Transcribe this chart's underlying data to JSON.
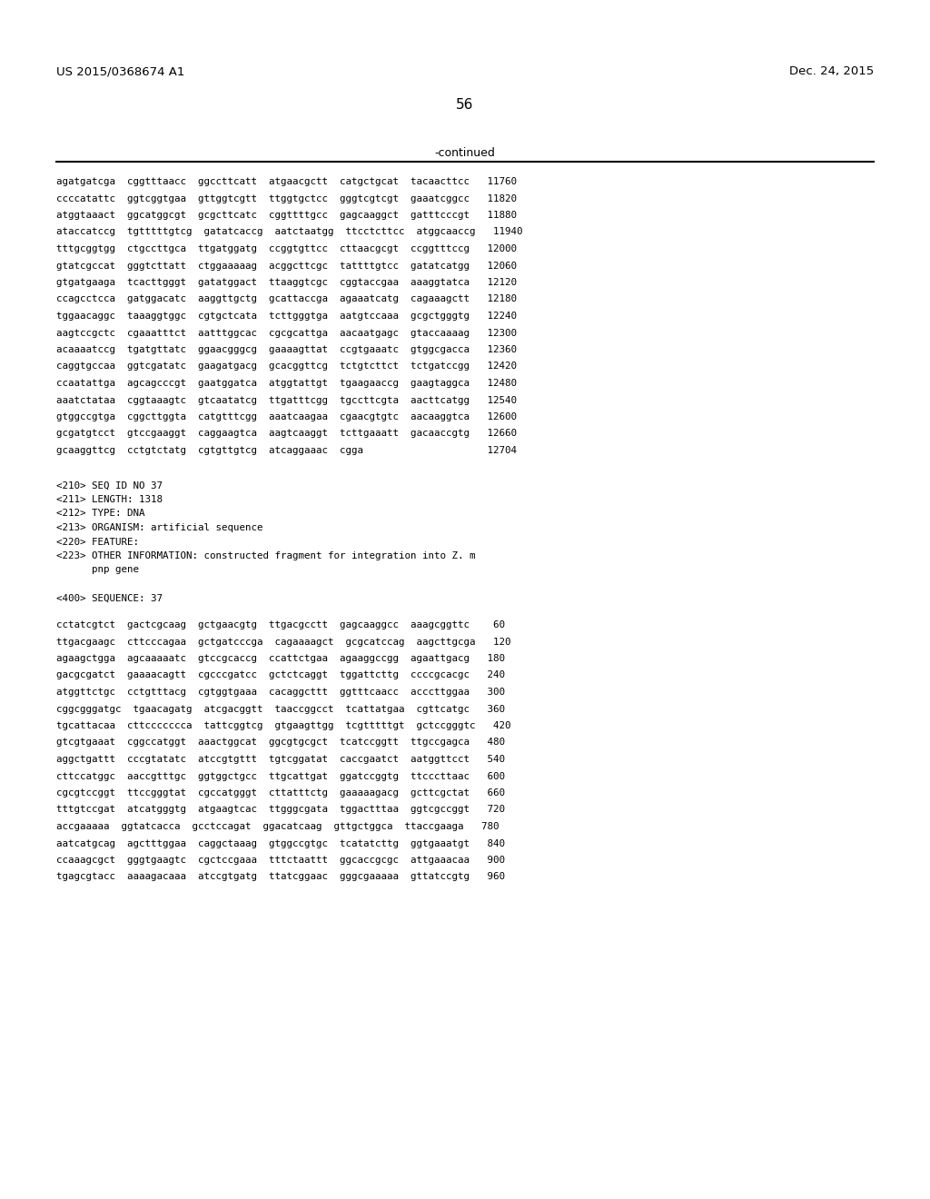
{
  "left_header": "US 2015/0368674 A1",
  "right_header": "Dec. 24, 2015",
  "page_number": "56",
  "continued_text": "-continued",
  "background_color": "#ffffff",
  "text_color": "#000000",
  "font_size_header": 9.5,
  "font_size_body": 7.8,
  "font_size_page": 11,
  "sequence_lines_part1": [
    "agatgatcga  cggtttaacc  ggccttcatt  atgaacgctt  catgctgcat  tacaacttcc   11760",
    "ccccatattc  ggtcggtgaa  gttggtcgtt  ttggtgctcc  gggtcgtcgt  gaaatcggcc   11820",
    "atggtaaact  ggcatggcgt  gcgcttcatc  cggttttgcc  gagcaaggct  gatttcccgt   11880",
    "ataccatccg  tgtttttgtcg  gatatcaccg  aatctaatgg  ttcctcttcc  atggcaaccg   11940",
    "tttgcggtgg  ctgccttgca  ttgatggatg  ccggtgttcc  cttaacgcgt  ccggtttccg   12000",
    "gtatcgccat  gggtcttatt  ctggaaaaag  acggcttcgc  tattttgtcc  gatatcatgg   12060",
    "gtgatgaaga  tcacttgggt  gatatggact  ttaaggtcgc  cggtaccgaa  aaaggtatca   12120",
    "ccagcctcca  gatggacatc  aaggttgctg  gcattaccga  agaaatcatg  cagaaagctt   12180",
    "tggaacaggc  taaaggtggc  cgtgctcata  tcttgggtga  aatgtccaaa  gcgctgggtg   12240",
    "aagtccgctc  cgaaatttct  aatttggcac  cgcgcattga  aacaatgagc  gtaccaaaag   12300",
    "acaaaatccg  tgatgttatc  ggaacgggcg  gaaaagttat  ccgtgaaatc  gtggcgacca   12360",
    "caggtgccaa  ggtcgatatc  gaagatgacg  gcacggttcg  tctgtcttct  tctgatccgg   12420",
    "ccaatattga  agcagcccgt  gaatggatca  atggtattgt  tgaagaaccg  gaagtaggca   12480",
    "aaatctataa  cggtaaagtc  gtcaatatcg  ttgatttcgg  tgccttcgta  aacttcatgg   12540",
    "gtggccgtga  cggcttggta  catgtttcgg  aaatcaagaa  cgaacgtgtc  aacaaggtca   12600",
    "gcgatgtcct  gtccgaaggt  caggaagtca  aagtcaaggt  tcttgaaatt  gacaaccgtg   12660",
    "gcaaggttcg  cctgtctatg  cgtgttgtcg  atcaggaaac  cgga                     12704"
  ],
  "metadata_lines": [
    "<210> SEQ ID NO 37",
    "<211> LENGTH: 1318",
    "<212> TYPE: DNA",
    "<213> ORGANISM: artificial sequence",
    "<220> FEATURE:",
    "<223> OTHER INFORMATION: constructed fragment for integration into Z. m",
    "      pnp gene",
    "",
    "<400> SEQUENCE: 37"
  ],
  "sequence_lines_part2": [
    "cctatcgtct  gactcgcaag  gctgaacgtg  ttgacgcctt  gagcaaggcc  aaagcggttc    60",
    "ttgacgaagc  cttcccagaa  gctgatcccga  cagaaaagct  gcgcatccag  aagcttgcga   120",
    "agaagctgga  agcaaaaatc  gtccgcaccg  ccattctgaa  agaaggccgg  agaattgacg   180",
    "gacgcgatct  gaaaacagtt  cgcccgatcc  gctctcaggt  tggattcttg  ccccgcacgc   240",
    "atggttctgc  cctgtttacg  cgtggtgaaa  cacaggcttt  ggtttcaacc  acccttggaa   300",
    "cggcgggatgc  tgaacagatg  atcgacggtt  taaccggcct  tcattatgaa  cgttcatgc   360",
    "tgcattacaa  cttccccccca  tattcggtcg  gtgaagttgg  tcgtttttgt  gctccgggtc   420",
    "gtcgtgaaat  cggccatggt  aaactggcat  ggcgtgcgct  tcatccggtt  ttgccgagca   480",
    "aggctgattt  cccgtatatc  atccgtgttt  tgtcggatat  caccgaatct  aatggttcct   540",
    "cttccatggc  aaccgtttgc  ggtggctgcc  ttgcattgat  ggatccggtg  ttcccttaac   600",
    "cgcgtccggt  ttccgggtat  cgccatgggt  cttatttctg  gaaaaagacg  gcttcgctat   660",
    "tttgtccgat  atcatgggtg  atgaagtcac  ttgggcgata  tggactttaa  ggtcgccggt   720",
    "accgaaaaa  ggtatcacca  gcctccagat  ggacatcaag  gttgctggca  ttaccgaaga   780",
    "aatcatgcag  agctttggaa  caggctaaag  gtggccgtgc  tcatatcttg  ggtgaaatgt   840",
    "ccaaagcgct  gggtgaagtc  cgctccgaaa  tttctaattt  ggcaccgcgc  attgaaacaa   900",
    "tgagcgtacc  aaaagacaaa  atccgtgatg  ttatcggaac  gggcgaaaaa  gttatccgtg   960"
  ]
}
